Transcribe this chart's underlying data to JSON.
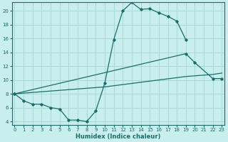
{
  "xlabel": "Humidex (Indice chaleur)",
  "bg_color": "#c8eeee",
  "grid_color": "#a8d8d8",
  "line_color": "#1a6e6a",
  "xlim": [
    -0.3,
    23.3
  ],
  "ylim": [
    3.5,
    21.2
  ],
  "xticks": [
    0,
    1,
    2,
    3,
    4,
    5,
    6,
    7,
    8,
    9,
    10,
    11,
    12,
    13,
    14,
    15,
    16,
    17,
    18,
    19,
    20,
    21,
    22,
    23
  ],
  "yticks": [
    4,
    6,
    8,
    10,
    12,
    14,
    16,
    18,
    20
  ],
  "curve1_x": [
    0,
    1,
    2,
    3,
    4,
    5,
    6,
    7,
    8,
    9,
    10,
    11,
    12,
    13,
    14,
    15,
    16,
    17,
    18,
    19
  ],
  "curve1_y": [
    8,
    7,
    6.5,
    6.5,
    6,
    5.8,
    4.2,
    4.2,
    4.0,
    5.5,
    9.5,
    15.8,
    20.0,
    21.2,
    20.2,
    20.3,
    19.7,
    19.2,
    18.5,
    15.8
  ],
  "curve2_x": [
    0,
    19,
    20,
    22,
    23
  ],
  "curve2_y": [
    8,
    13.8,
    12.5,
    10.2,
    10.2
  ],
  "curve3_x": [
    0,
    10,
    19,
    22,
    23
  ],
  "curve3_y": [
    8,
    9.0,
    10.5,
    10.8,
    11.0
  ]
}
